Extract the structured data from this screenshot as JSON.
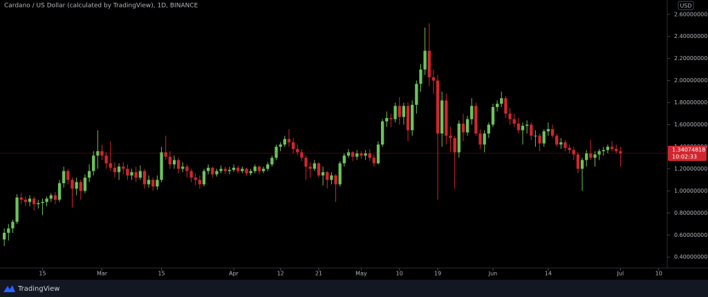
{
  "chart_data": {
    "type": "candlestick",
    "title": "Cardano / US Dollar (calculated by TradingView), 1D, BINANCE",
    "currency": "USD",
    "brand": "TradingView",
    "up_color": "#6cc35c",
    "down_color": "#d1262f",
    "last_price": 1.34074818,
    "countdown": "10:02:33",
    "ylim": [
      0.32,
      2.68
    ],
    "yticks": [
      {
        "value": 0.4,
        "label": "0.40000000"
      },
      {
        "value": 0.6,
        "label": "0.60000000"
      },
      {
        "value": 0.8,
        "label": "0.80000000"
      },
      {
        "value": 1.0,
        "label": "1.00000000"
      },
      {
        "value": 1.2,
        "label": "1.20000000"
      },
      {
        "value": 1.4,
        "label": "1.40000000"
      },
      {
        "value": 1.6,
        "label": "1.60000000"
      },
      {
        "value": 1.8,
        "label": "1.80000000"
      },
      {
        "value": 2.0,
        "label": "2.00000000"
      },
      {
        "value": 2.2,
        "label": "2.20000000"
      },
      {
        "value": 2.4,
        "label": "2.40000000"
      },
      {
        "value": 2.6,
        "label": "2.60000000"
      }
    ],
    "xlim": [
      -1,
      156
    ],
    "xticks": [
      {
        "value": 9,
        "label": "15"
      },
      {
        "value": 23,
        "label": "Mar"
      },
      {
        "value": 37,
        "label": "15"
      },
      {
        "value": 54,
        "label": "Apr"
      },
      {
        "value": 65,
        "label": "12"
      },
      {
        "value": 74,
        "label": "21"
      },
      {
        "value": 84,
        "label": "May"
      },
      {
        "value": 93,
        "label": "10"
      },
      {
        "value": 102,
        "label": "19"
      },
      {
        "value": 115,
        "label": "Jun"
      },
      {
        "value": 128,
        "label": "14"
      },
      {
        "value": 145,
        "label": "Jul"
      },
      {
        "value": 154,
        "label": "10"
      }
    ],
    "ohlc": [
      [
        0.56,
        0.66,
        0.5,
        0.62
      ],
      [
        0.62,
        0.7,
        0.55,
        0.66
      ],
      [
        0.66,
        0.74,
        0.62,
        0.72
      ],
      [
        0.72,
        0.97,
        0.7,
        0.94
      ],
      [
        0.94,
        0.98,
        0.88,
        0.92
      ],
      [
        0.92,
        0.95,
        0.86,
        0.9
      ],
      [
        0.9,
        0.96,
        0.86,
        0.93
      ],
      [
        0.93,
        0.95,
        0.82,
        0.88
      ],
      [
        0.88,
        0.92,
        0.84,
        0.89
      ],
      [
        0.89,
        0.93,
        0.78,
        0.9
      ],
      [
        0.9,
        0.95,
        0.86,
        0.93
      ],
      [
        0.93,
        0.98,
        0.9,
        0.96
      ],
      [
        0.96,
        0.99,
        0.88,
        0.92
      ],
      [
        0.92,
        1.1,
        0.9,
        1.07
      ],
      [
        1.07,
        1.22,
        1.03,
        1.18
      ],
      [
        1.18,
        1.2,
        1.06,
        1.1
      ],
      [
        1.1,
        1.12,
        0.85,
        1.02
      ],
      [
        1.02,
        1.12,
        0.96,
        1.08
      ],
      [
        1.08,
        1.1,
        0.92,
        1.0
      ],
      [
        1.0,
        1.15,
        0.98,
        1.12
      ],
      [
        1.12,
        1.24,
        1.08,
        1.18
      ],
      [
        1.18,
        1.36,
        1.14,
        1.32
      ],
      [
        1.32,
        1.55,
        1.2,
        1.36
      ],
      [
        1.36,
        1.42,
        1.28,
        1.32
      ],
      [
        1.32,
        1.35,
        1.2,
        1.25
      ],
      [
        1.25,
        1.45,
        1.18,
        1.21
      ],
      [
        1.21,
        1.26,
        1.12,
        1.17
      ],
      [
        1.17,
        1.25,
        1.1,
        1.22
      ],
      [
        1.22,
        1.26,
        1.15,
        1.2
      ],
      [
        1.2,
        1.24,
        1.1,
        1.14
      ],
      [
        1.14,
        1.2,
        1.1,
        1.17
      ],
      [
        1.17,
        1.22,
        1.08,
        1.12
      ],
      [
        1.12,
        1.23,
        1.1,
        1.18
      ],
      [
        1.18,
        1.2,
        1.02,
        1.06
      ],
      [
        1.06,
        1.14,
        1.03,
        1.1
      ],
      [
        1.1,
        1.12,
        1.0,
        1.04
      ],
      [
        1.04,
        1.14,
        1.01,
        1.1
      ],
      [
        1.1,
        1.4,
        1.08,
        1.35
      ],
      [
        1.35,
        1.5,
        1.28,
        1.31
      ],
      [
        1.31,
        1.36,
        1.2,
        1.24
      ],
      [
        1.24,
        1.32,
        1.2,
        1.28
      ],
      [
        1.28,
        1.3,
        1.16,
        1.2
      ],
      [
        1.2,
        1.26,
        1.17,
        1.22
      ],
      [
        1.22,
        1.24,
        1.12,
        1.18
      ],
      [
        1.18,
        1.2,
        1.08,
        1.12
      ],
      [
        1.12,
        1.16,
        1.05,
        1.1
      ],
      [
        1.1,
        1.14,
        1.02,
        1.06
      ],
      [
        1.06,
        1.2,
        1.04,
        1.18
      ],
      [
        1.18,
        1.24,
        1.15,
        1.21
      ],
      [
        1.21,
        1.22,
        1.12,
        1.15
      ],
      [
        1.15,
        1.2,
        1.13,
        1.18
      ],
      [
        1.18,
        1.23,
        1.16,
        1.2
      ],
      [
        1.2,
        1.22,
        1.15,
        1.18
      ],
      [
        1.18,
        1.22,
        1.15,
        1.19
      ],
      [
        1.19,
        1.24,
        1.17,
        1.21
      ],
      [
        1.21,
        1.23,
        1.16,
        1.18
      ],
      [
        1.18,
        1.22,
        1.16,
        1.2
      ],
      [
        1.2,
        1.21,
        1.14,
        1.16
      ],
      [
        1.16,
        1.2,
        1.14,
        1.18
      ],
      [
        1.18,
        1.24,
        1.16,
        1.22
      ],
      [
        1.22,
        1.23,
        1.15,
        1.18
      ],
      [
        1.18,
        1.22,
        1.16,
        1.2
      ],
      [
        1.2,
        1.26,
        1.18,
        1.24
      ],
      [
        1.24,
        1.32,
        1.22,
        1.3
      ],
      [
        1.3,
        1.42,
        1.28,
        1.4
      ],
      [
        1.4,
        1.44,
        1.36,
        1.42
      ],
      [
        1.42,
        1.5,
        1.4,
        1.47
      ],
      [
        1.47,
        1.56,
        1.4,
        1.44
      ],
      [
        1.44,
        1.48,
        1.34,
        1.38
      ],
      [
        1.38,
        1.42,
        1.32,
        1.35
      ],
      [
        1.35,
        1.38,
        1.27,
        1.3
      ],
      [
        1.3,
        1.32,
        1.1,
        1.22
      ],
      [
        1.22,
        1.26,
        1.12,
        1.2
      ],
      [
        1.2,
        1.28,
        1.18,
        1.25
      ],
      [
        1.25,
        1.26,
        1.12,
        1.14
      ],
      [
        1.14,
        1.22,
        1.05,
        1.17
      ],
      [
        1.17,
        1.18,
        1.02,
        1.1
      ],
      [
        1.1,
        1.17,
        1.06,
        1.14
      ],
      [
        1.14,
        1.15,
        0.9,
        1.06
      ],
      [
        1.06,
        1.27,
        1.04,
        1.25
      ],
      [
        1.25,
        1.34,
        1.22,
        1.32
      ],
      [
        1.32,
        1.38,
        1.3,
        1.35
      ],
      [
        1.35,
        1.36,
        1.27,
        1.31
      ],
      [
        1.31,
        1.37,
        1.28,
        1.34
      ],
      [
        1.34,
        1.36,
        1.29,
        1.32
      ],
      [
        1.32,
        1.37,
        1.28,
        1.34
      ],
      [
        1.34,
        1.38,
        1.27,
        1.3
      ],
      [
        1.3,
        1.33,
        1.22,
        1.25
      ],
      [
        1.25,
        1.45,
        1.24,
        1.42
      ],
      [
        1.42,
        1.65,
        1.4,
        1.63
      ],
      [
        1.63,
        1.72,
        1.58,
        1.66
      ],
      [
        1.66,
        1.7,
        1.58,
        1.65
      ],
      [
        1.65,
        1.8,
        1.62,
        1.77
      ],
      [
        1.77,
        1.85,
        1.6,
        1.67
      ],
      [
        1.67,
        1.8,
        1.6,
        1.77
      ],
      [
        1.77,
        1.8,
        1.45,
        1.55
      ],
      [
        1.55,
        1.82,
        1.5,
        1.78
      ],
      [
        1.78,
        2.0,
        1.7,
        1.97
      ],
      [
        1.97,
        2.15,
        1.9,
        2.1
      ],
      [
        2.1,
        2.48,
        2.05,
        2.27
      ],
      [
        2.27,
        2.52,
        1.95,
        2.03
      ],
      [
        2.03,
        2.1,
        1.88,
        2.0
      ],
      [
        2.0,
        2.05,
        0.92,
        1.52
      ],
      [
        1.52,
        1.9,
        1.4,
        1.82
      ],
      [
        1.82,
        1.88,
        1.42,
        1.5
      ],
      [
        1.5,
        1.58,
        1.35,
        1.48
      ],
      [
        1.48,
        1.5,
        1.02,
        1.35
      ],
      [
        1.35,
        1.64,
        1.3,
        1.61
      ],
      [
        1.61,
        1.7,
        1.45,
        1.53
      ],
      [
        1.53,
        1.68,
        1.5,
        1.65
      ],
      [
        1.65,
        1.84,
        1.6,
        1.77
      ],
      [
        1.77,
        1.8,
        1.5,
        1.52
      ],
      [
        1.52,
        1.56,
        1.38,
        1.42
      ],
      [
        1.42,
        1.55,
        1.35,
        1.52
      ],
      [
        1.52,
        1.62,
        1.48,
        1.6
      ],
      [
        1.6,
        1.79,
        1.58,
        1.76
      ],
      [
        1.76,
        1.82,
        1.72,
        1.79
      ],
      [
        1.79,
        1.9,
        1.76,
        1.84
      ],
      [
        1.84,
        1.86,
        1.66,
        1.7
      ],
      [
        1.7,
        1.75,
        1.6,
        1.65
      ],
      [
        1.65,
        1.7,
        1.58,
        1.61
      ],
      [
        1.61,
        1.66,
        1.52,
        1.55
      ],
      [
        1.55,
        1.62,
        1.42,
        1.59
      ],
      [
        1.59,
        1.64,
        1.52,
        1.6
      ],
      [
        1.6,
        1.62,
        1.46,
        1.5
      ],
      [
        1.5,
        1.55,
        1.4,
        1.5
      ],
      [
        1.5,
        1.52,
        1.36,
        1.43
      ],
      [
        1.43,
        1.56,
        1.4,
        1.54
      ],
      [
        1.54,
        1.62,
        1.5,
        1.56
      ],
      [
        1.56,
        1.6,
        1.48,
        1.5
      ],
      [
        1.5,
        1.52,
        1.4,
        1.42
      ],
      [
        1.42,
        1.48,
        1.38,
        1.44
      ],
      [
        1.44,
        1.46,
        1.36,
        1.39
      ],
      [
        1.39,
        1.42,
        1.34,
        1.37
      ],
      [
        1.37,
        1.4,
        1.28,
        1.33
      ],
      [
        1.33,
        1.35,
        1.16,
        1.2
      ],
      [
        1.2,
        1.3,
        1.0,
        1.28
      ],
      [
        1.28,
        1.37,
        1.22,
        1.34
      ],
      [
        1.34,
        1.46,
        1.28,
        1.3
      ],
      [
        1.3,
        1.36,
        1.22,
        1.33
      ],
      [
        1.33,
        1.38,
        1.28,
        1.36
      ],
      [
        1.36,
        1.4,
        1.32,
        1.37
      ],
      [
        1.37,
        1.42,
        1.34,
        1.4
      ],
      [
        1.4,
        1.45,
        1.36,
        1.38
      ],
      [
        1.38,
        1.42,
        1.34,
        1.36
      ],
      [
        1.36,
        1.4,
        1.22,
        1.34
      ]
    ]
  }
}
